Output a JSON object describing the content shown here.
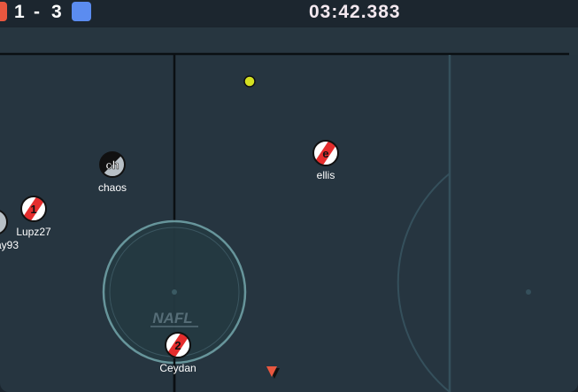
{
  "scoreboard": {
    "red_score": "1",
    "separator": "-",
    "blue_score": "3",
    "red_color": "#e8573f",
    "blue_color": "#5b8cf0"
  },
  "timer": "03:42.383",
  "field": {
    "logo_text": "NAFL",
    "pitch_color": "#263540"
  },
  "players": [
    {
      "name": "chaos",
      "avatar": "ch",
      "team": "spectator"
    },
    {
      "name": "ellis",
      "avatar": "e",
      "team": "red"
    },
    {
      "name": "Lupz27",
      "avatar": "1",
      "team": "red"
    },
    {
      "name": "ay93",
      "avatar": "",
      "team": "spectator"
    },
    {
      "name": "Ceydan",
      "avatar": "2",
      "team": "red"
    }
  ],
  "ball": {
    "color": "#d4e021"
  },
  "indicator": {
    "icon": "offscreen-ball-arrow-icon",
    "color": "#e8573f"
  }
}
